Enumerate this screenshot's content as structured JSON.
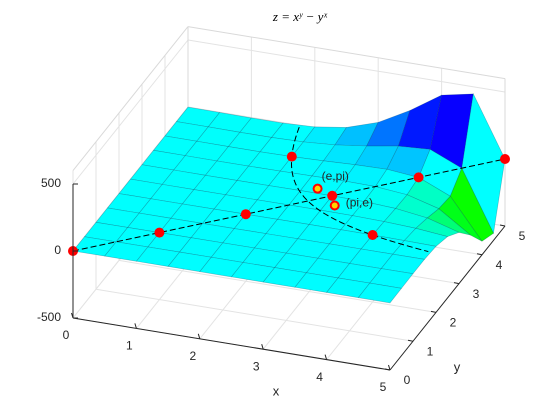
{
  "chart_data": {
    "type": "surface",
    "title": "z = xʸ − yˣ",
    "xlabel": "x",
    "ylabel": "y",
    "x": [
      0,
      0.5,
      1,
      1.5,
      2,
      2.5,
      3,
      3.5,
      4,
      4.5,
      5
    ],
    "y": [
      0,
      0.5,
      1,
      1.5,
      2,
      2.5,
      3,
      3.5,
      4,
      4.5,
      5
    ],
    "z": [
      [
        0,
        1,
        1,
        1,
        1,
        1,
        1,
        1,
        1,
        1,
        1
      ],
      [
        -1,
        0,
        0.5,
        0.871,
        1.164,
        1.404,
        1.607,
        1.783,
        1.938,
        2.077,
        2.205
      ],
      [
        -1,
        -0.5,
        0,
        0.5,
        1,
        1.5,
        2,
        2.5,
        3,
        3.5,
        4
      ],
      [
        -1,
        -0.871,
        -0.5,
        0,
        0.578,
        1.197,
        1.821,
        2.414,
        2.937,
        3.346,
        3.586
      ],
      [
        -1,
        -1.164,
        -1,
        -0.578,
        0,
        0.593,
        1,
        0.94,
        0,
        -2.38,
        -7
      ],
      [
        -1,
        -1.404,
        -1.5,
        -1.197,
        -0.593,
        0,
        -0.04,
        -1.79,
        -7.06,
        -18.8,
        -41.76
      ],
      [
        -1,
        -1.607,
        -2,
        -1.821,
        -1,
        0.04,
        0,
        -3.89,
        -17,
        -49.17,
        -118
      ],
      [
        -1,
        -1.783,
        -2.5,
        -2.414,
        -0.94,
        1.79,
        3.89,
        0,
        -22.1,
        -87.4,
        -245.7
      ],
      [
        -1,
        -1.938,
        -3,
        -2.937,
        0,
        7.06,
        17,
        22.1,
        0,
        -101.9,
        -399
      ],
      [
        -1,
        -2.077,
        -3.5,
        -3.346,
        2.38,
        18.8,
        49.17,
        87.4,
        101.9,
        0,
        -447
      ],
      [
        -1,
        -2.205,
        -4,
        -3.586,
        7,
        41.76,
        118,
        245.7,
        399,
        447,
        0
      ]
    ],
    "xlim": [
      0,
      5
    ],
    "ylim": [
      0,
      5
    ],
    "zlim": [
      -500,
      600
    ],
    "xticks": [
      0,
      1,
      2,
      3,
      4,
      5
    ],
    "yticks": [
      0,
      1,
      2,
      3,
      4,
      5
    ],
    "zticks": [
      -500,
      0,
      500
    ],
    "colormap": "hsv",
    "grid": true,
    "markers": {
      "x": [
        0,
        1,
        2,
        3,
        4,
        5,
        2,
        4
      ],
      "y": [
        0,
        1,
        2,
        3,
        4,
        5,
        4,
        2
      ],
      "z": [
        0,
        0,
        0,
        0,
        0,
        0,
        0,
        0
      ],
      "color": "#ff0000"
    },
    "annotations": [
      {
        "text": "(e,pi)",
        "x": 2.718,
        "y": 3.142,
        "z": 0.68
      },
      {
        "text": "(pi,e)",
        "x": 3.142,
        "y": 2.718,
        "z": -0.68
      }
    ]
  }
}
